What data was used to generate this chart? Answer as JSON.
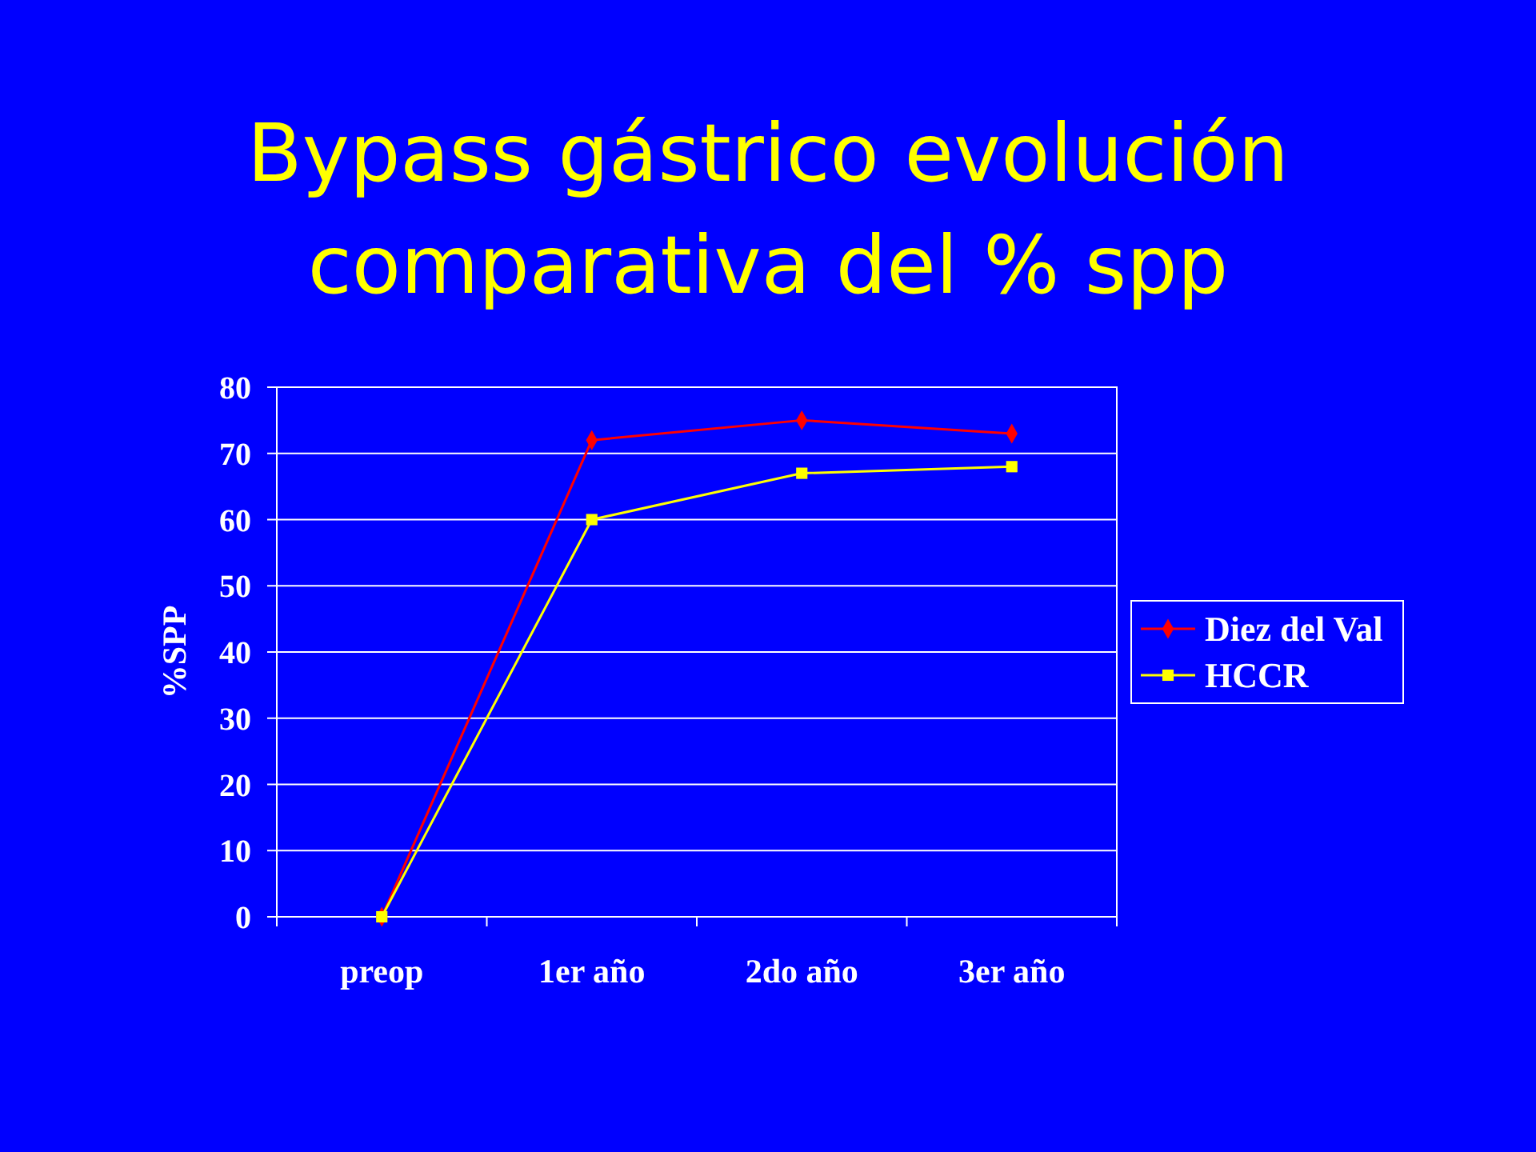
{
  "chart_data": {
    "type": "line",
    "title": "Bypass gástrico evolución\ncomparativa del % spp",
    "ylabel": "%SPP",
    "categories": [
      "preop",
      "1er año",
      "2do año",
      "3er año"
    ],
    "series": [
      {
        "name": "Diez del Val",
        "color": "#ff0000",
        "marker": "diamond",
        "values": [
          0,
          72,
          75,
          73
        ]
      },
      {
        "name": "HCCR",
        "color": "#ffff00",
        "marker": "square",
        "values": [
          0,
          60,
          67,
          68
        ]
      }
    ],
    "ylim": [
      0,
      80
    ],
    "yticks": [
      0,
      10,
      20,
      30,
      40,
      50,
      60,
      70,
      80
    ],
    "grid": "y",
    "legend": "right",
    "line_style": "solid"
  }
}
